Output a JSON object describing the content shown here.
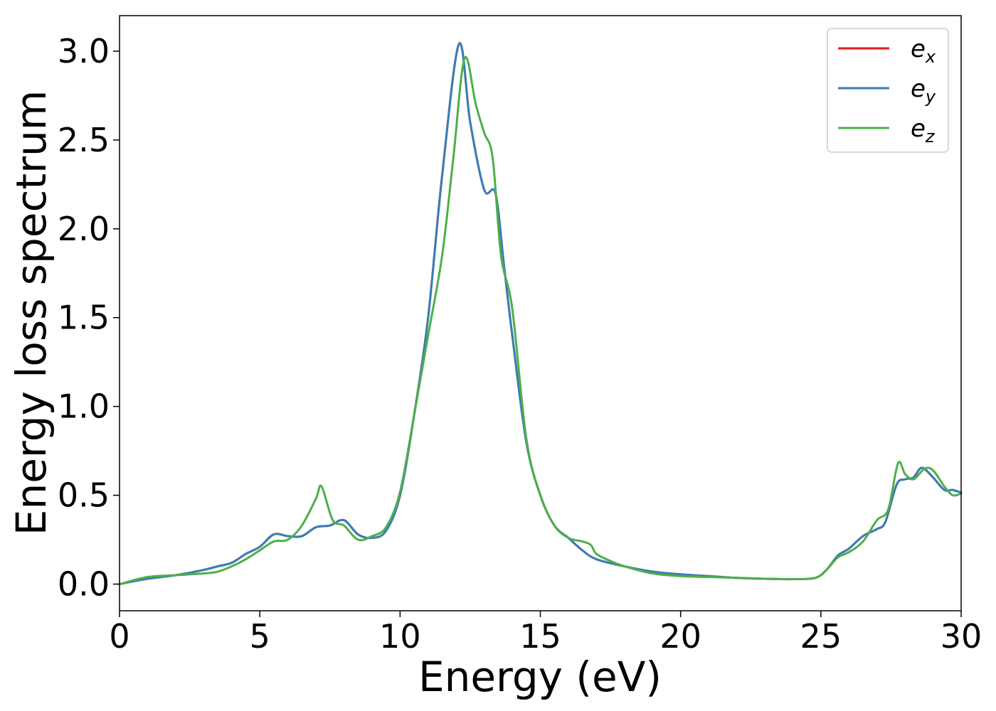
{
  "chart_data": {
    "type": "line",
    "xlabel": "Energy (eV)",
    "ylabel": "Energy loss spectrum",
    "xlim": [
      0,
      30
    ],
    "ylim": [
      -0.15,
      3.2
    ],
    "xticks": [
      "0",
      "5",
      "10",
      "15",
      "20",
      "25",
      "30"
    ],
    "yticks": [
      "0.0",
      "0.5",
      "1.0",
      "1.5",
      "2.0",
      "2.5",
      "3.0"
    ],
    "grid": false,
    "legend_position": "top-right",
    "series": [
      {
        "name": "e",
        "subscript": "x",
        "color": "#e41a1c",
        "points": [
          [
            0,
            0.0
          ],
          [
            1,
            0.03
          ],
          [
            2,
            0.05
          ],
          [
            3,
            0.08
          ],
          [
            3.5,
            0.1
          ],
          [
            4,
            0.12
          ],
          [
            4.5,
            0.17
          ],
          [
            5,
            0.21
          ],
          [
            5.5,
            0.28
          ],
          [
            6,
            0.27
          ],
          [
            6.5,
            0.27
          ],
          [
            7,
            0.32
          ],
          [
            7.5,
            0.33
          ],
          [
            8,
            0.36
          ],
          [
            8.5,
            0.28
          ],
          [
            9,
            0.26
          ],
          [
            9.5,
            0.3
          ],
          [
            10,
            0.5
          ],
          [
            10.5,
            0.95
          ],
          [
            11,
            1.5
          ],
          [
            11.5,
            2.3
          ],
          [
            12.1,
            3.04
          ],
          [
            12.5,
            2.6
          ],
          [
            13,
            2.22
          ],
          [
            13.4,
            2.2
          ],
          [
            13.7,
            1.8
          ],
          [
            14,
            1.4
          ],
          [
            14.5,
            0.8
          ],
          [
            15,
            0.5
          ],
          [
            15.5,
            0.33
          ],
          [
            16,
            0.26
          ],
          [
            16.5,
            0.19
          ],
          [
            17,
            0.14
          ],
          [
            18,
            0.1
          ],
          [
            19,
            0.07
          ],
          [
            20,
            0.055
          ],
          [
            21,
            0.045
          ],
          [
            22,
            0.035
          ],
          [
            23,
            0.03
          ],
          [
            24,
            0.028
          ],
          [
            24.8,
            0.035
          ],
          [
            25.2,
            0.08
          ],
          [
            25.6,
            0.16
          ],
          [
            26,
            0.2
          ],
          [
            26.5,
            0.27
          ],
          [
            27,
            0.31
          ],
          [
            27.3,
            0.35
          ],
          [
            27.7,
            0.56
          ],
          [
            28,
            0.59
          ],
          [
            28.3,
            0.6
          ],
          [
            28.6,
            0.655
          ],
          [
            29,
            0.6
          ],
          [
            29.4,
            0.53
          ],
          [
            29.7,
            0.53
          ],
          [
            30,
            0.515
          ]
        ]
      },
      {
        "name": "e",
        "subscript": "y",
        "color": "#377eb8",
        "points": [
          [
            0,
            0.0
          ],
          [
            1,
            0.03
          ],
          [
            2,
            0.05
          ],
          [
            3,
            0.08
          ],
          [
            3.5,
            0.1
          ],
          [
            4,
            0.12
          ],
          [
            4.5,
            0.17
          ],
          [
            5,
            0.21
          ],
          [
            5.5,
            0.28
          ],
          [
            6,
            0.27
          ],
          [
            6.5,
            0.27
          ],
          [
            7,
            0.32
          ],
          [
            7.5,
            0.33
          ],
          [
            8,
            0.36
          ],
          [
            8.5,
            0.28
          ],
          [
            9,
            0.26
          ],
          [
            9.5,
            0.3
          ],
          [
            10,
            0.5
          ],
          [
            10.5,
            0.95
          ],
          [
            11,
            1.5
          ],
          [
            11.5,
            2.3
          ],
          [
            12.1,
            3.04
          ],
          [
            12.5,
            2.6
          ],
          [
            13,
            2.22
          ],
          [
            13.4,
            2.2
          ],
          [
            13.7,
            1.8
          ],
          [
            14,
            1.4
          ],
          [
            14.5,
            0.8
          ],
          [
            15,
            0.5
          ],
          [
            15.5,
            0.33
          ],
          [
            16,
            0.26
          ],
          [
            16.5,
            0.19
          ],
          [
            17,
            0.14
          ],
          [
            18,
            0.1
          ],
          [
            19,
            0.07
          ],
          [
            20,
            0.055
          ],
          [
            21,
            0.045
          ],
          [
            22,
            0.035
          ],
          [
            23,
            0.03
          ],
          [
            24,
            0.028
          ],
          [
            24.8,
            0.035
          ],
          [
            25.2,
            0.08
          ],
          [
            25.6,
            0.16
          ],
          [
            26,
            0.2
          ],
          [
            26.5,
            0.27
          ],
          [
            27,
            0.31
          ],
          [
            27.3,
            0.35
          ],
          [
            27.7,
            0.56
          ],
          [
            28,
            0.59
          ],
          [
            28.3,
            0.6
          ],
          [
            28.6,
            0.655
          ],
          [
            29,
            0.6
          ],
          [
            29.4,
            0.53
          ],
          [
            29.7,
            0.53
          ],
          [
            30,
            0.515
          ]
        ]
      },
      {
        "name": "e",
        "subscript": "z",
        "color": "#4daf4a",
        "points": [
          [
            0,
            0.0
          ],
          [
            1,
            0.04
          ],
          [
            2,
            0.05
          ],
          [
            3,
            0.06
          ],
          [
            3.5,
            0.07
          ],
          [
            4,
            0.1
          ],
          [
            4.5,
            0.14
          ],
          [
            5,
            0.19
          ],
          [
            5.5,
            0.24
          ],
          [
            6,
            0.25
          ],
          [
            6.5,
            0.33
          ],
          [
            7,
            0.48
          ],
          [
            7.2,
            0.55
          ],
          [
            7.6,
            0.36
          ],
          [
            8,
            0.33
          ],
          [
            8.5,
            0.25
          ],
          [
            9,
            0.27
          ],
          [
            9.5,
            0.32
          ],
          [
            10,
            0.52
          ],
          [
            10.5,
            0.95
          ],
          [
            11,
            1.4
          ],
          [
            11.5,
            1.85
          ],
          [
            11.9,
            2.4
          ],
          [
            12.3,
            2.96
          ],
          [
            12.7,
            2.7
          ],
          [
            13,
            2.54
          ],
          [
            13.3,
            2.4
          ],
          [
            13.6,
            1.85
          ],
          [
            14,
            1.55
          ],
          [
            14.5,
            0.82
          ],
          [
            15,
            0.5
          ],
          [
            15.5,
            0.33
          ],
          [
            16,
            0.26
          ],
          [
            16.5,
            0.24
          ],
          [
            16.8,
            0.22
          ],
          [
            17,
            0.17
          ],
          [
            17.5,
            0.13
          ],
          [
            18,
            0.1
          ],
          [
            19,
            0.06
          ],
          [
            20,
            0.045
          ],
          [
            21,
            0.04
          ],
          [
            22,
            0.035
          ],
          [
            23,
            0.03
          ],
          [
            24,
            0.028
          ],
          [
            24.8,
            0.035
          ],
          [
            25.2,
            0.08
          ],
          [
            25.6,
            0.15
          ],
          [
            26,
            0.18
          ],
          [
            26.5,
            0.24
          ],
          [
            27,
            0.36
          ],
          [
            27.4,
            0.42
          ],
          [
            27.75,
            0.68
          ],
          [
            28,
            0.62
          ],
          [
            28.3,
            0.59
          ],
          [
            28.7,
            0.65
          ],
          [
            29,
            0.64
          ],
          [
            29.4,
            0.55
          ],
          [
            29.7,
            0.5
          ],
          [
            30,
            0.51
          ]
        ]
      }
    ]
  }
}
